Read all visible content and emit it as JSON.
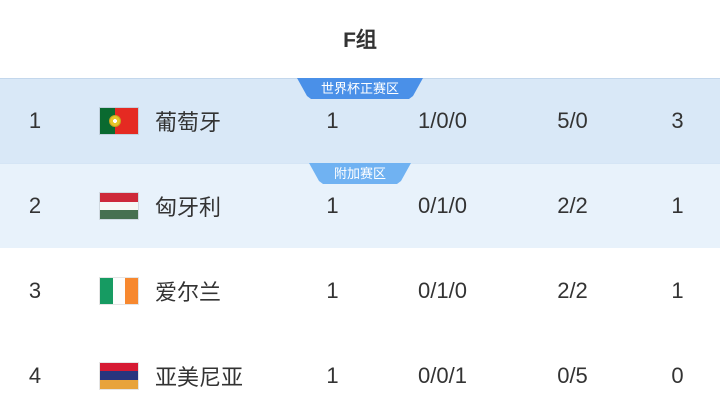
{
  "header": {
    "title": "F组"
  },
  "zones": {
    "qualification": {
      "label": "世界杯正赛区",
      "color": "#4A90E8"
    },
    "playoff": {
      "label": "附加赛区",
      "color": "#70B2F2"
    }
  },
  "colors": {
    "row1_background": "#D9E8F7",
    "row2_background": "#E8F2FB",
    "text": "#333333"
  },
  "table": {
    "rows": [
      {
        "rank": "1",
        "flag": "portugal-flag",
        "team": "葡萄牙",
        "played": "1",
        "win_draw_loss": "1/0/0",
        "goals_for_against": "5/0",
        "points": "3"
      },
      {
        "rank": "2",
        "flag": "hungary-flag",
        "team": "匈牙利",
        "played": "1",
        "win_draw_loss": "0/1/0",
        "goals_for_against": "2/2",
        "points": "1"
      },
      {
        "rank": "3",
        "flag": "ireland-flag",
        "team": "爱尔兰",
        "played": "1",
        "win_draw_loss": "0/1/0",
        "goals_for_against": "2/2",
        "points": "1"
      },
      {
        "rank": "4",
        "flag": "armenia-flag",
        "team": "亚美尼亚",
        "played": "1",
        "win_draw_loss": "0/0/1",
        "goals_for_against": "0/5",
        "points": "0"
      }
    ]
  }
}
